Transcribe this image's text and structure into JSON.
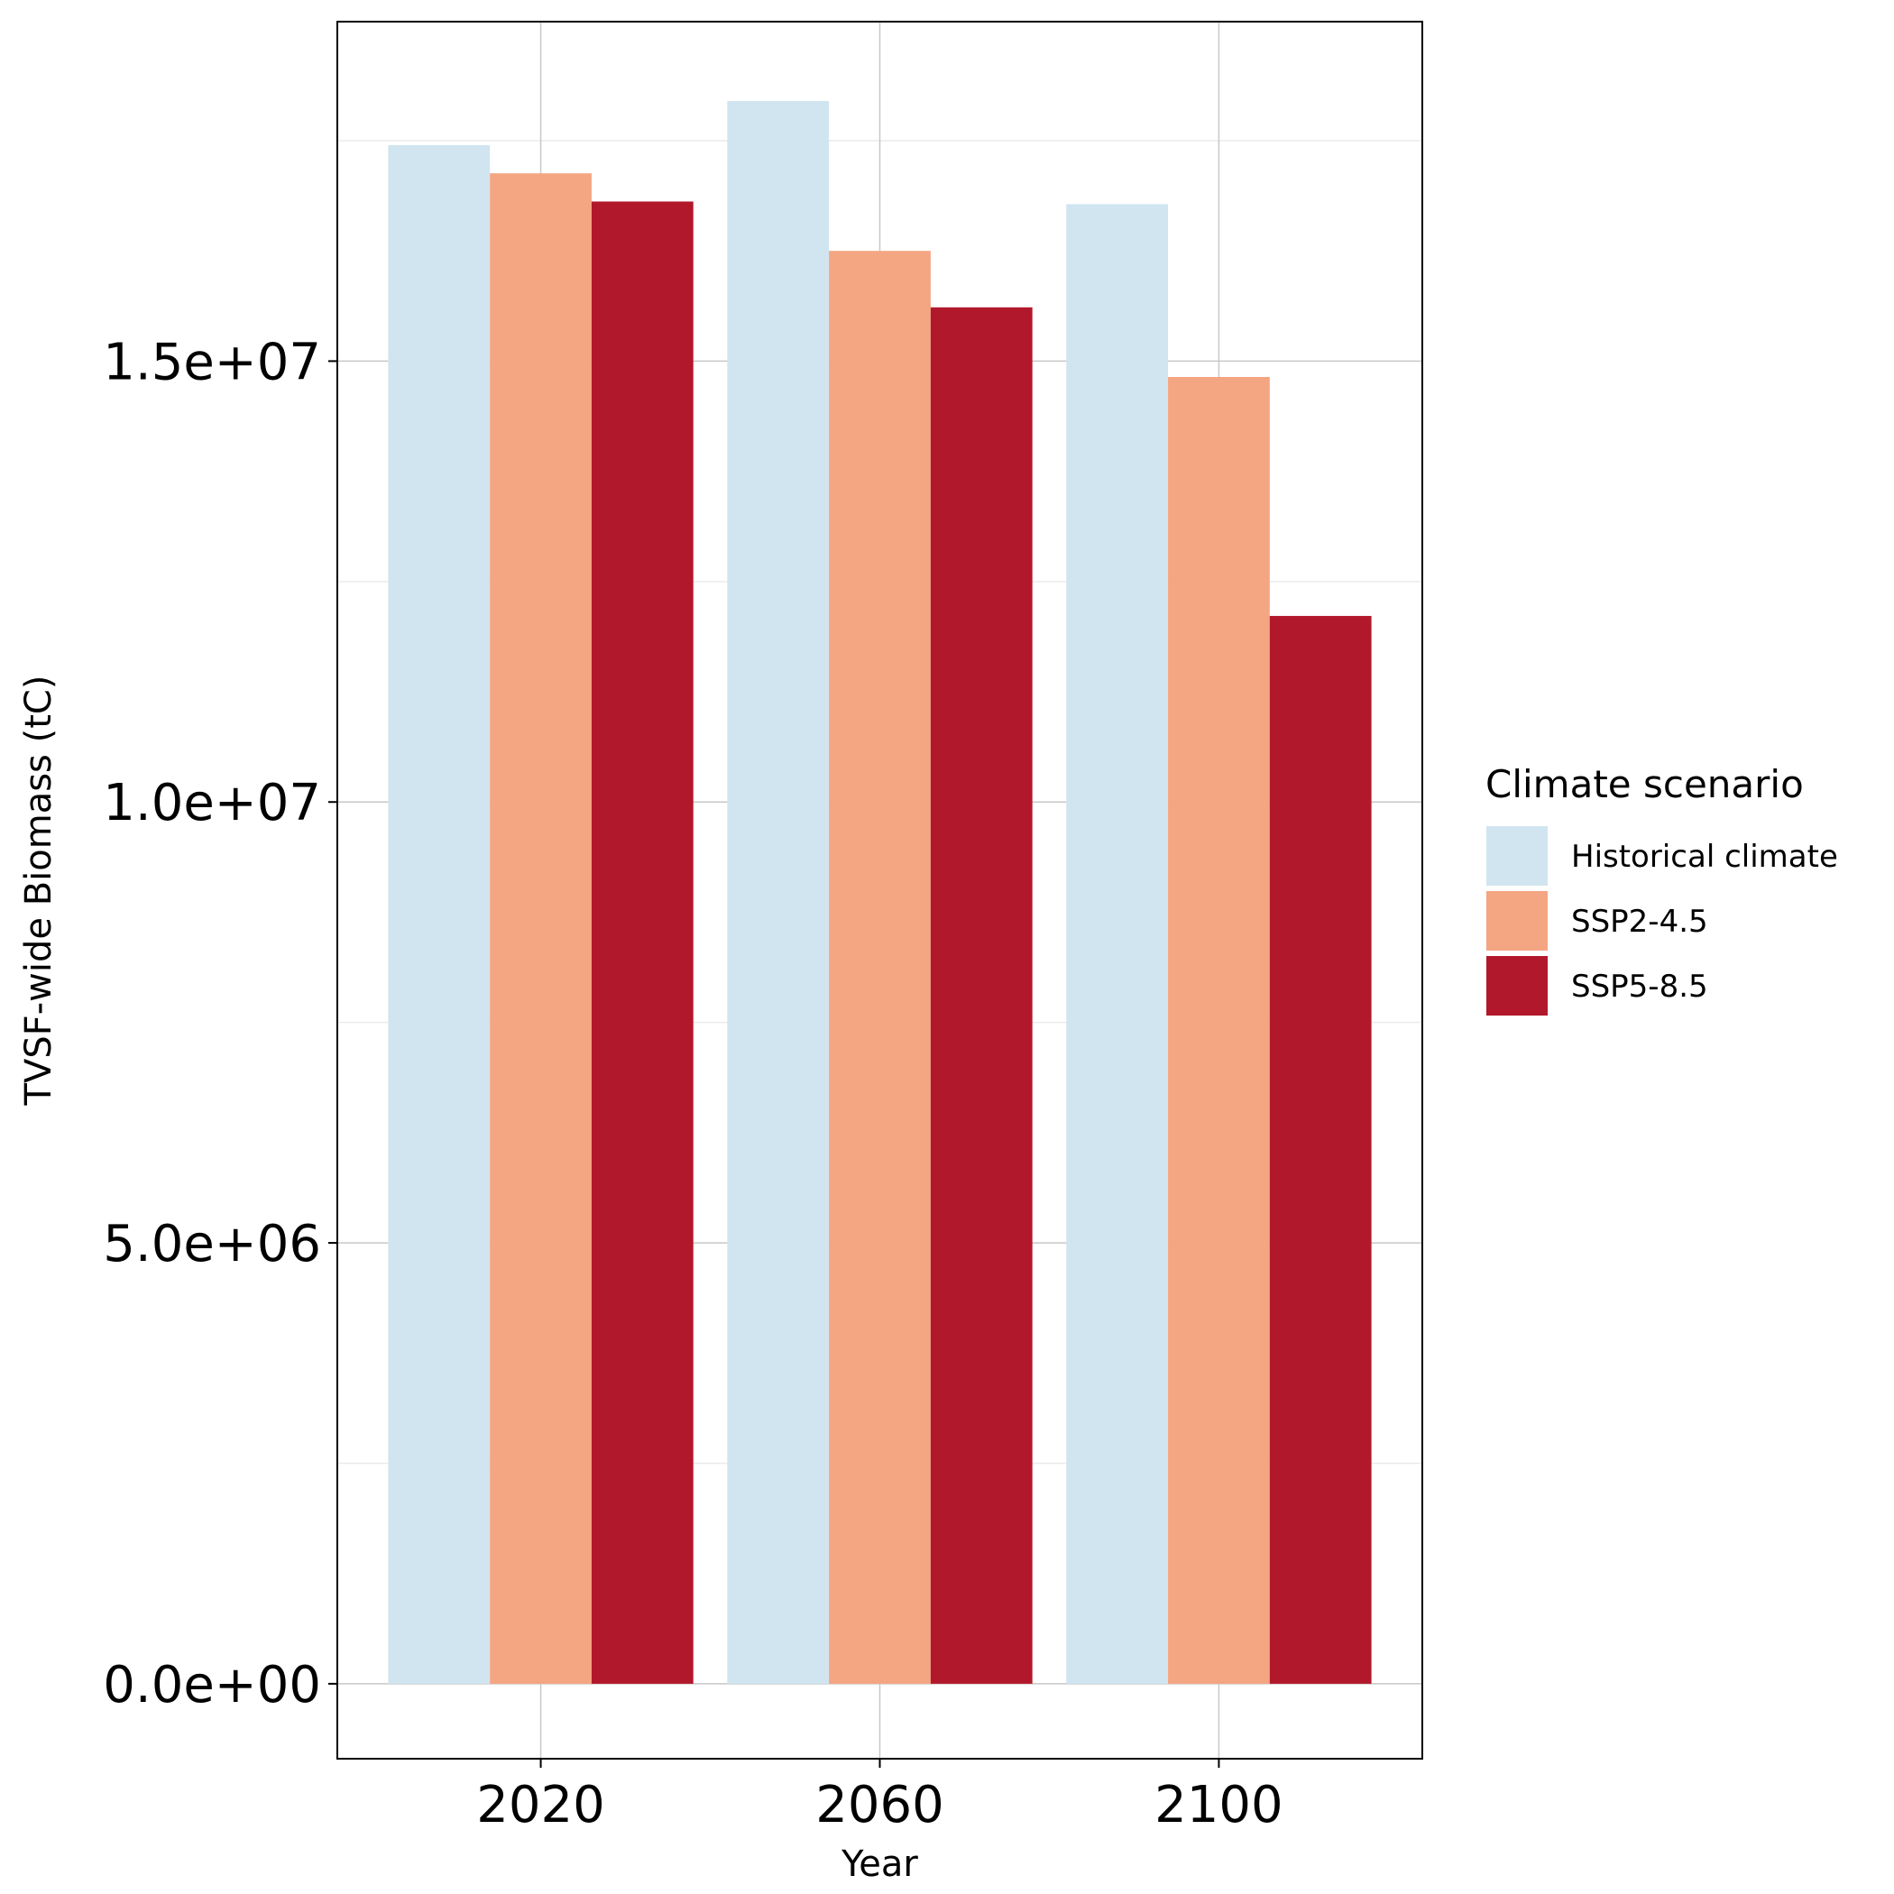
{
  "chart_data": {
    "type": "bar",
    "categories": [
      "2020",
      "2060",
      "2100"
    ],
    "series": [
      {
        "name": "Historical climate",
        "color": "#d1e5f0",
        "values": [
          17450000,
          17950000,
          16780000
        ]
      },
      {
        "name": "SSP2-4.5",
        "color": "#f4a582",
        "values": [
          17130000,
          16250000,
          14820000
        ]
      },
      {
        "name": "SSP5-8.5",
        "color": "#b2182b",
        "values": [
          16810000,
          15610000,
          12110000
        ]
      }
    ],
    "xlabel": "Year",
    "ylabel": "TVSF-wide Biomass (tC)",
    "yticks": [
      0,
      5000000,
      10000000,
      15000000
    ],
    "ytick_labels": [
      "0.0e+00",
      "5.0e+06",
      "1.0e+07",
      "1.5e+07"
    ],
    "ylim": [
      -850000,
      18850000
    ],
    "grid": true,
    "legend": {
      "title": "Climate scenario",
      "position": "right"
    }
  }
}
